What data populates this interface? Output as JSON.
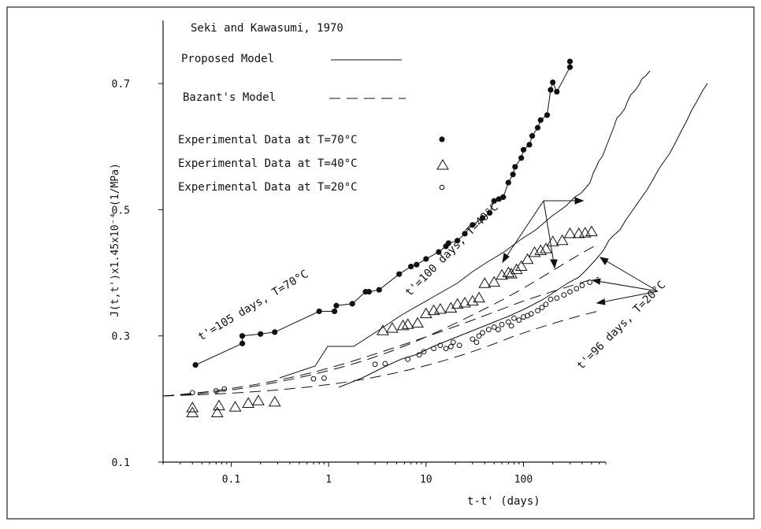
{
  "chart_data": {
    "type": "scatter",
    "title": "Seki and Kawasumi, 1970",
    "xlabel": "t-t' (days)",
    "ylabel": "J(t,t')x1.45x10⁻⁴ (1/MPa)",
    "x_scale": "log",
    "xlim": [
      0.02,
      700
    ],
    "ylim": [
      0.1,
      0.8
    ],
    "x_ticks": [
      0.1,
      1,
      10,
      100
    ],
    "x_tick_labels": [
      "0.1",
      "1",
      "10",
      "100"
    ],
    "y_ticks": [
      0.1,
      0.3,
      0.5,
      0.7
    ],
    "y_tick_labels": [
      "0.1",
      "0.3",
      "0.5",
      "0.7"
    ],
    "grid": false,
    "legend_position": "top-left",
    "legend": {
      "proposed": "Proposed Model",
      "bazant": "Bazant's Model",
      "t70": "Experimental Data at T=70°C",
      "t40": "Experimental Data at T=40°C",
      "t20": "Experimental Data at T=20°C"
    },
    "annotations": {
      "a70": "t'=105 days, T=70°C",
      "a40": "t'=100 days, T=40°C",
      "a20": "t'=96 days, T=20°C"
    },
    "series": [
      {
        "name": "Experimental Data at T=70°C",
        "marker": "filled-circle",
        "x": [
          0.043,
          0.13,
          0.13,
          0.2,
          0.28,
          0.8,
          1.15,
          1.2,
          1.75,
          2.4,
          2.6,
          3.3,
          5.3,
          7,
          8,
          10,
          13.5,
          16,
          17,
          21,
          25,
          30,
          38,
          45,
          50,
          56,
          62,
          70,
          78,
          82,
          95,
          100,
          115,
          123,
          140,
          150,
          175,
          190,
          200,
          220,
          300,
          300
        ],
        "y": [
          0.254,
          0.288,
          0.3,
          0.303,
          0.306,
          0.339,
          0.339,
          0.348,
          0.351,
          0.37,
          0.37,
          0.373,
          0.398,
          0.41,
          0.413,
          0.422,
          0.433,
          0.442,
          0.447,
          0.451,
          0.462,
          0.476,
          0.487,
          0.495,
          0.514,
          0.517,
          0.52,
          0.543,
          0.556,
          0.568,
          0.582,
          0.595,
          0.603,
          0.617,
          0.63,
          0.642,
          0.65,
          0.69,
          0.702,
          0.687,
          0.726,
          0.735
        ]
      },
      {
        "name": "Experimental Data at T=40°C",
        "marker": "open-triangle",
        "x": [
          0.04,
          0.04,
          0.072,
          0.075,
          0.11,
          0.15,
          0.19,
          0.28,
          3.6,
          4.5,
          5.8,
          6.5,
          8.2,
          10,
          12,
          14,
          18,
          21,
          25,
          30,
          35,
          40,
          50,
          60,
          70,
          75,
          85,
          95,
          110,
          130,
          150,
          170,
          200,
          250,
          300,
          370,
          430,
          500
        ],
        "y": [
          0.178,
          0.186,
          0.178,
          0.189,
          0.187,
          0.193,
          0.197,
          0.195,
          0.308,
          0.312,
          0.316,
          0.318,
          0.32,
          0.335,
          0.34,
          0.342,
          0.344,
          0.35,
          0.352,
          0.355,
          0.36,
          0.383,
          0.385,
          0.396,
          0.4,
          0.398,
          0.405,
          0.41,
          0.421,
          0.432,
          0.435,
          0.438,
          0.449,
          0.451,
          0.462,
          0.462,
          0.463,
          0.465
        ]
      },
      {
        "name": "Experimental Data at T=20°C",
        "marker": "open-circle",
        "x": [
          0.04,
          0.07,
          0.085,
          0.7,
          0.9,
          3,
          3.8,
          6.5,
          8.5,
          9.5,
          12,
          14,
          16,
          18,
          19,
          22,
          30,
          33,
          35,
          38,
          44,
          50,
          55,
          60,
          70,
          75,
          80,
          90,
          100,
          110,
          120,
          140,
          155,
          170,
          190,
          220,
          260,
          300,
          350,
          400,
          480
        ],
        "y": [
          0.21,
          0.213,
          0.216,
          0.232,
          0.233,
          0.255,
          0.256,
          0.263,
          0.27,
          0.275,
          0.28,
          0.285,
          0.28,
          0.283,
          0.29,
          0.285,
          0.295,
          0.29,
          0.3,
          0.305,
          0.31,
          0.314,
          0.31,
          0.318,
          0.322,
          0.316,
          0.328,
          0.325,
          0.33,
          0.332,
          0.335,
          0.34,
          0.345,
          0.35,
          0.358,
          0.36,
          0.365,
          0.37,
          0.375,
          0.38,
          0.385
        ]
      }
    ]
  }
}
